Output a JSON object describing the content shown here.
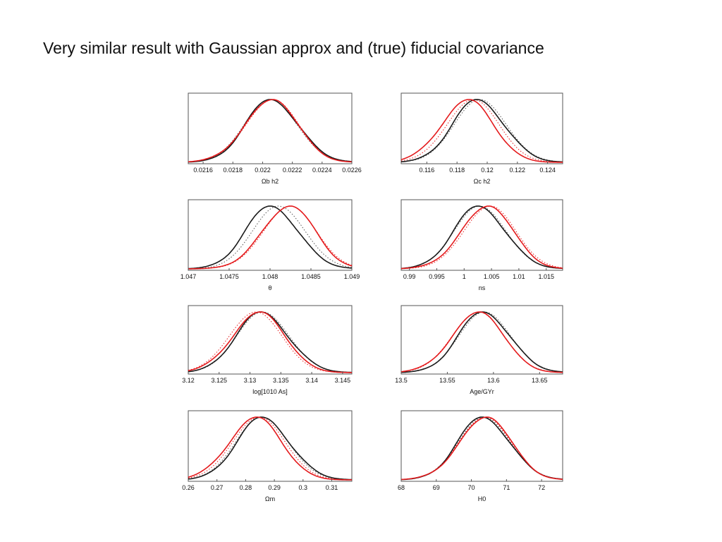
{
  "slide": {
    "title": "Very similar result with Gaussian approx and (true)  fiducial covariance"
  },
  "colors": {
    "black": "#1a1a1a",
    "red": "#e41a1c",
    "dotted_black": "#555555",
    "dotted_red": "#e41a1c"
  },
  "chart_data": [
    {
      "type": "line",
      "xlabel": "Ωb h2",
      "xlim": [
        0.0215,
        0.0226
      ],
      "ticks": [
        0.0216,
        0.0218,
        0.022,
        0.0222,
        0.0224,
        0.0226
      ],
      "tick_labels": [
        "0.0216",
        "0.0218",
        "0.022",
        "0.0222",
        "0.0224",
        "0.0226"
      ],
      "peak_black": 0.02205,
      "peak_red": 0.02207,
      "peak_dot_black": 0.02205,
      "peak_dot_red": 0.02207
    },
    {
      "type": "line",
      "xlabel": "Ωc h2",
      "xlim": [
        0.1143,
        0.125
      ],
      "ticks": [
        0.116,
        0.118,
        0.12,
        0.122,
        0.124
      ],
      "tick_labels": [
        "0.116",
        "0.118",
        "0.12",
        "0.122",
        "0.124"
      ],
      "peak_black": 0.1193,
      "peak_red": 0.1188,
      "peak_dot_black": 0.1195,
      "peak_dot_red": 0.1191
    },
    {
      "type": "line",
      "xlabel": "θ",
      "xlim": [
        1.047,
        1.049
      ],
      "ticks": [
        1.047,
        1.0475,
        1.048,
        1.0485,
        1.049
      ],
      "tick_labels": [
        "1.047",
        "1.0475",
        "1.048",
        "1.0485",
        "1.049"
      ],
      "peak_black": 1.048,
      "peak_red": 1.04825,
      "peak_dot_black": 1.0481,
      "peak_dot_red": 1.04825
    },
    {
      "type": "line",
      "xlabel": "ns",
      "xlim": [
        0.9885,
        1.018
      ],
      "ticks": [
        0.99,
        0.995,
        1,
        1.005,
        1.01,
        1.015
      ],
      "tick_labels": [
        "0.99",
        "0.995",
        "1",
        "1.005",
        "1.01",
        "1.015"
      ],
      "peak_black": 1.0025,
      "peak_red": 1.0045,
      "peak_dot_black": 1.0028,
      "peak_dot_red": 1.0048
    },
    {
      "type": "line",
      "xlabel": "log[1010 As]",
      "xlim": [
        3.12,
        3.1465
      ],
      "ticks": [
        3.12,
        3.125,
        3.13,
        3.135,
        3.14,
        3.145
      ],
      "tick_labels": [
        "3.12",
        "3.125",
        "3.13",
        "3.135",
        "3.14",
        "3.145"
      ],
      "peak_black": 3.1317,
      "peak_red": 3.1317,
      "peak_dot_black": 3.132,
      "peak_dot_red": 3.131
    },
    {
      "type": "line",
      "xlabel": "Age/GYr",
      "xlim": [
        13.5,
        13.675
      ],
      "ticks": [
        13.5,
        13.55,
        13.6,
        13.65
      ],
      "tick_labels": [
        "13.5",
        "13.55",
        "13.6",
        "13.65"
      ],
      "peak_black": 13.588,
      "peak_red": 13.585,
      "peak_dot_black": 13.59,
      "peak_dot_red": 13.584
    },
    {
      "type": "line",
      "xlabel": "Ωm",
      "xlim": [
        0.26,
        0.317
      ],
      "ticks": [
        0.26,
        0.27,
        0.28,
        0.29,
        0.3,
        0.31
      ],
      "tick_labels": [
        "0.26",
        "0.27",
        "0.28",
        "0.29",
        "0.3",
        "0.31"
      ],
      "peak_black": 0.2855,
      "peak_red": 0.284,
      "peak_dot_black": 0.2855,
      "peak_dot_red": 0.2848
    },
    {
      "type": "line",
      "xlabel": "H0",
      "xlim": [
        68,
        72.6
      ],
      "ticks": [
        68,
        69,
        70,
        71,
        72
      ],
      "tick_labels": [
        "68",
        "69",
        "70",
        "71",
        "72"
      ],
      "peak_black": 70.3,
      "peak_red": 70.45,
      "peak_dot_black": 70.35,
      "peak_dot_red": 70.4
    }
  ]
}
